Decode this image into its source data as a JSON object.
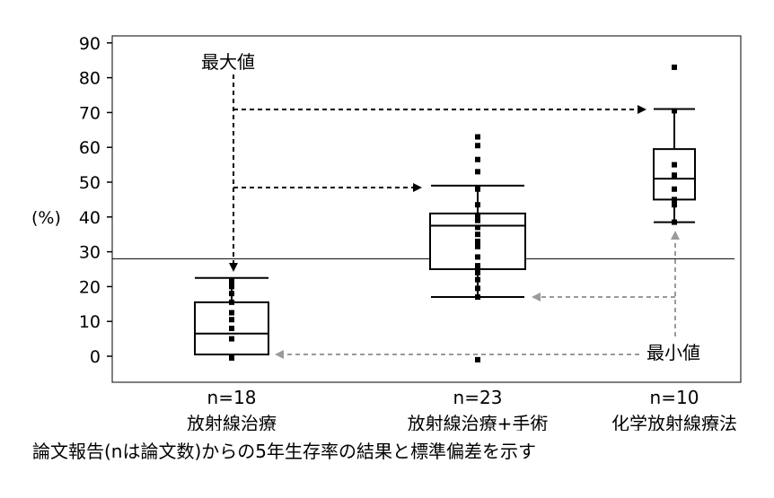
{
  "chart_data": {
    "type": "box",
    "ylabel": "(%)",
    "ylim": [
      -7,
      91
    ],
    "yticks": [
      0,
      10,
      20,
      30,
      40,
      50,
      60,
      70,
      80,
      90
    ],
    "reference_line": 28,
    "categories": [
      {
        "n_label": "n=18",
        "name": "放射線治療"
      },
      {
        "n_label": "n=23",
        "name": "放射線治療+手術"
      },
      {
        "n_label": "n=10",
        "name": "化学放射線療法"
      }
    ],
    "boxes": [
      {
        "whisker_low": 0.5,
        "q1": 0.5,
        "median": 6.5,
        "q3": 15.5,
        "whisker_high": 22.5,
        "points": [
          -0.5,
          5,
          8,
          10.5,
          12.5,
          15.5,
          18,
          20,
          21.5
        ]
      },
      {
        "whisker_low": 17,
        "q1": 25,
        "median": 37.5,
        "q3": 41,
        "whisker_high": 49,
        "points": [
          -1,
          17,
          19.5,
          22,
          24,
          26,
          28.5,
          31.5,
          33,
          35,
          37,
          39,
          40.5,
          43.5,
          48,
          53,
          56.5,
          60.5,
          63
        ]
      },
      {
        "whisker_low": 38.5,
        "q1": 45,
        "median": 51,
        "q3": 59.5,
        "whisker_high": 71,
        "points": [
          38.5,
          43.5,
          45,
          48,
          52,
          55,
          70.5,
          83
        ]
      }
    ],
    "annotations": {
      "max_label": "最大値",
      "min_label": "最小値"
    }
  },
  "caption": "論文報告(nは論文数)からの5年生存率の結果と標準偏差を示す"
}
